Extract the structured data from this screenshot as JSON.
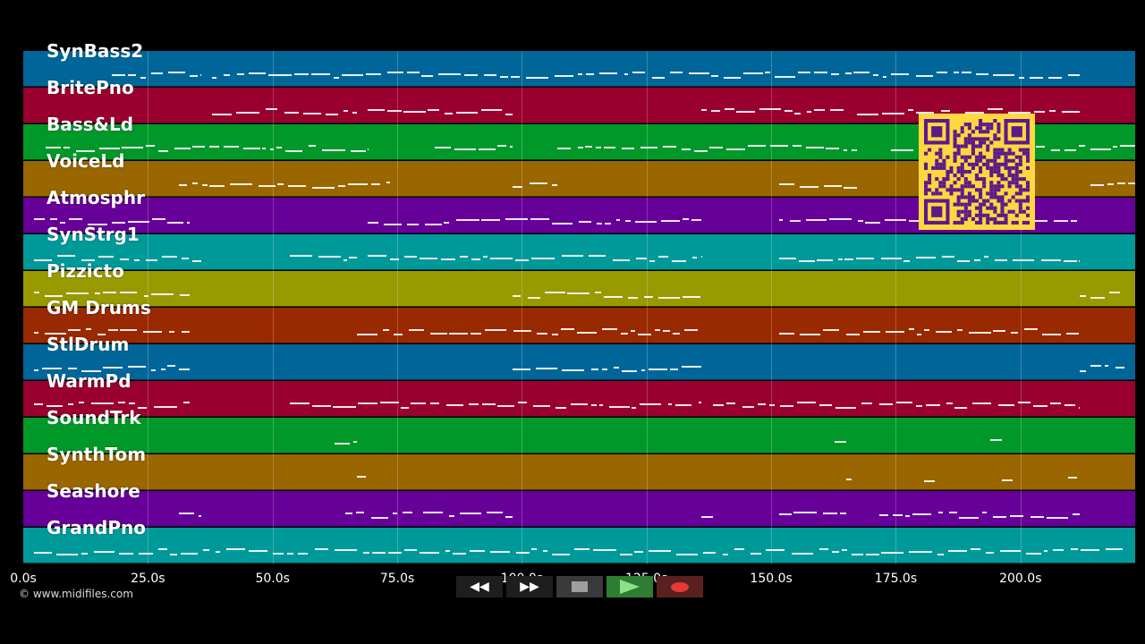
{
  "tracks": [
    {
      "name": "SynBass2",
      "color": "#006699"
    },
    {
      "name": "BritePno",
      "color": "#99002f"
    },
    {
      "name": "Bass&Ld",
      "color": "#009929"
    },
    {
      "name": "VoiceLd",
      "color": "#996600"
    },
    {
      "name": "Atmosphr",
      "color": "#660099"
    },
    {
      "name": "SynStrg1",
      "color": "#009999"
    },
    {
      "name": "Pizzicto",
      "color": "#999900"
    },
    {
      "name": "GM Drums",
      "color": "#992900"
    },
    {
      "name": "StlDrum",
      "color": "#006699"
    },
    {
      "name": "WarmPd",
      "color": "#99002f"
    },
    {
      "name": "SoundTrk",
      "color": "#009929"
    },
    {
      "name": "SynthTom",
      "color": "#996600"
    },
    {
      "name": "Seashore",
      "color": "#660099"
    },
    {
      "name": "GrandPno",
      "color": "#009999"
    }
  ],
  "time_axis": {
    "ticks": [
      "0.0s",
      "25.0s",
      "50.0s",
      "75.0s",
      "100.0s",
      "125.0s",
      "150.0s",
      "175.0s",
      "200.0s"
    ],
    "max_seconds": 223
  },
  "copyright": "© www.midifiles.com",
  "transport": {
    "rewind_icon": "rewind-icon",
    "forward_icon": "fast-forward-icon",
    "stop_icon": "stop-icon",
    "play_icon": "play-icon",
    "record_icon": "record-icon",
    "rewind_label": "◀◀",
    "forward_label": "▶▶"
  },
  "qr": {
    "color": "#ffd740",
    "dark": "#5b1a8a"
  }
}
